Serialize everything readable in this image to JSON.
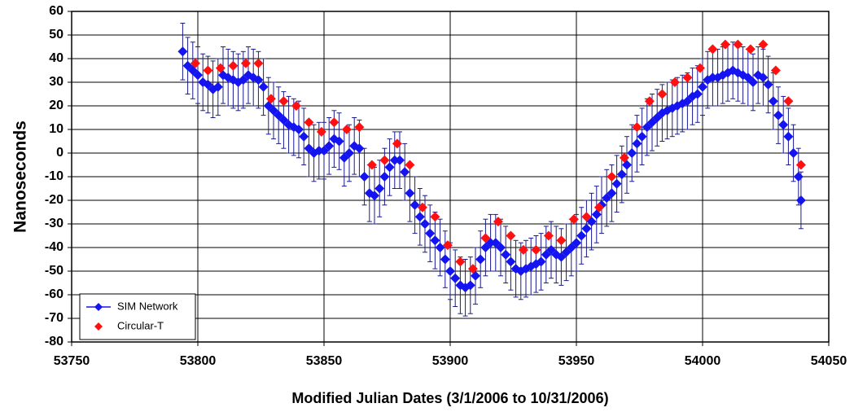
{
  "chart_data": {
    "type": "scatter",
    "xlabel": "Modified Julian Dates (3/1/2006 to 10/31/2006)",
    "ylabel": "Nanoseconds",
    "xlim": [
      53750,
      54050
    ],
    "xticks": [
      53750,
      53800,
      53850,
      53900,
      53950,
      54000,
      54050
    ],
    "ylim": [
      -80,
      60
    ],
    "yticks": [
      -80,
      -70,
      -60,
      -50,
      -40,
      -30,
      -20,
      -10,
      0,
      10,
      20,
      30,
      40,
      50,
      60
    ],
    "grid": true,
    "legend": "lower-left",
    "series": [
      {
        "name": "SIM Network",
        "color": "#1414f0",
        "error_color": "#1a1a8c",
        "error": 12,
        "marker": "diamond",
        "line_in_legend": true,
        "x": [
          53794,
          53796,
          53798,
          53800,
          53802,
          53804,
          53806,
          53808,
          53810,
          53812,
          53814,
          53816,
          53818,
          53820,
          53822,
          53824,
          53826,
          53828,
          53830,
          53832,
          53834,
          53836,
          53838,
          53840,
          53842,
          53844,
          53846,
          53848,
          53850,
          53852,
          53854,
          53856,
          53858,
          53860,
          53862,
          53864,
          53866,
          53868,
          53870,
          53872,
          53874,
          53876,
          53878,
          53880,
          53882,
          53884,
          53886,
          53888,
          53890,
          53892,
          53894,
          53896,
          53898,
          53900,
          53902,
          53904,
          53906,
          53908,
          53910,
          53912,
          53914,
          53916,
          53918,
          53920,
          53922,
          53924,
          53926,
          53928,
          53930,
          53932,
          53934,
          53936,
          53938,
          53940,
          53942,
          53944,
          53946,
          53948,
          53950,
          53952,
          53954,
          53956,
          53958,
          53960,
          53962,
          53964,
          53966,
          53968,
          53970,
          53972,
          53974,
          53976,
          53978,
          53980,
          53982,
          53984,
          53986,
          53988,
          53990,
          53992,
          53994,
          53996,
          53998,
          54000,
          54002,
          54004,
          54006,
          54008,
          54010,
          54012,
          54014,
          54016,
          54018,
          54020,
          54022,
          54024,
          54026,
          54028,
          54030,
          54032,
          54034,
          54036,
          54038,
          54039
        ],
        "values": [
          43,
          37,
          35,
          33,
          30,
          29,
          27,
          28,
          33,
          32,
          31,
          30,
          31,
          33,
          32,
          31,
          28,
          20,
          18,
          16,
          14,
          12,
          11,
          10,
          7,
          2,
          0,
          1,
          1,
          3,
          6,
          5,
          -2,
          0,
          3,
          2,
          -10,
          -17,
          -18,
          -15,
          -10,
          -6,
          -3,
          -3,
          -8,
          -17,
          -22,
          -27,
          -30,
          -34,
          -37,
          -40,
          -45,
          -50,
          -53,
          -56,
          -57,
          -56,
          -52,
          -45,
          -40,
          -38,
          -38,
          -40,
          -43,
          -46,
          -49,
          -50,
          -49,
          -48,
          -47,
          -46,
          -43,
          -41,
          -43,
          -44,
          -42,
          -40,
          -38,
          -35,
          -32,
          -29,
          -26,
          -22,
          -19,
          -17,
          -13,
          -9,
          -5,
          0,
          4,
          7,
          11,
          13,
          15,
          17,
          18,
          19,
          20,
          21,
          22,
          24,
          25,
          28,
          31,
          32,
          32,
          33,
          34,
          35,
          34,
          33,
          32,
          30,
          33,
          32,
          29,
          22,
          16,
          12,
          7,
          0,
          -10,
          -20
        ]
      },
      {
        "name": "Circular-T",
        "color": "#ff1010",
        "marker": "diamond",
        "line_in_legend": false,
        "x": [
          53799,
          53804,
          53809,
          53814,
          53819,
          53824,
          53829,
          53834,
          53839,
          53844,
          53849,
          53854,
          53859,
          53864,
          53869,
          53874,
          53879,
          53884,
          53889,
          53894,
          53899,
          53904,
          53909,
          53914,
          53919,
          53924,
          53929,
          53934,
          53939,
          53944,
          53949,
          53954,
          53959,
          53964,
          53969,
          53974,
          53979,
          53984,
          53989,
          53994,
          53999,
          54004,
          54009,
          54014,
          54019,
          54024,
          54029,
          54034,
          54039
        ],
        "values": [
          38,
          35,
          36,
          37,
          38,
          38,
          23,
          22,
          20,
          13,
          9,
          13,
          10,
          11,
          -5,
          -3,
          4,
          -5,
          -23,
          -27,
          -39,
          -46,
          -49,
          -36,
          -29,
          -35,
          -41,
          -41,
          -35,
          -37,
          -28,
          -27,
          -23,
          -10,
          -2,
          11,
          22,
          25,
          30,
          32,
          36,
          44,
          46,
          46,
          44,
          46,
          35,
          22,
          -5
        ]
      }
    ]
  }
}
